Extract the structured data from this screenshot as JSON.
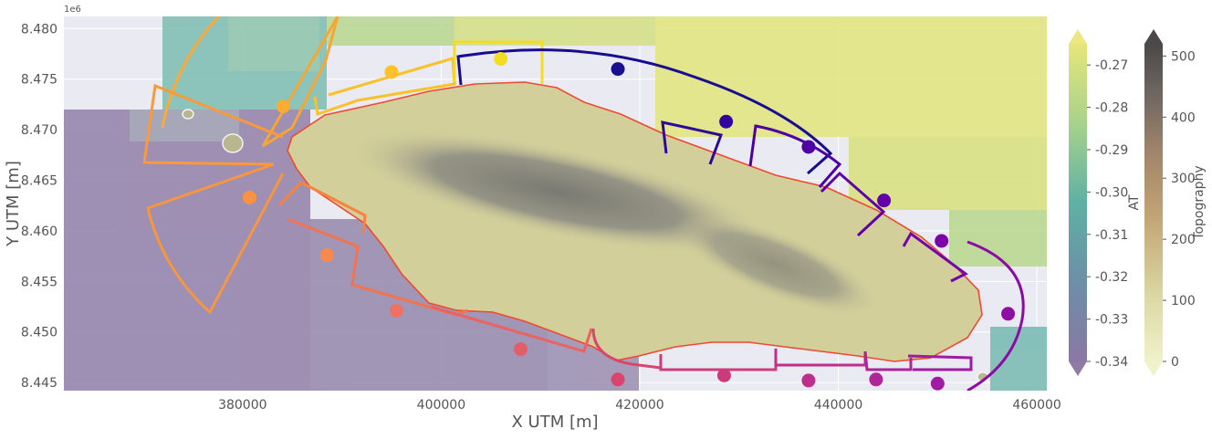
{
  "chart_data": {
    "type": "heatmap",
    "xlabel": "X UTM [m]",
    "ylabel": "Y UTM [m]",
    "y_offset_text": "1e6",
    "xlim": [
      362000,
      461000
    ],
    "ylim": [
      8.4442,
      8.4812
    ],
    "x_ticks": [
      380000,
      400000,
      420000,
      440000,
      460000
    ],
    "x_tick_labels": [
      "380000",
      "400000",
      "420000",
      "440000",
      "460000"
    ],
    "y_ticks": [
      8.445,
      8.45,
      8.455,
      8.46,
      8.465,
      8.47,
      8.475,
      8.48
    ],
    "y_tick_labels": [
      "8.445",
      "8.450",
      "8.455",
      "8.460",
      "8.465",
      "8.470",
      "8.475",
      "8.480"
    ],
    "grid": true,
    "colorbars": [
      {
        "label": "AT",
        "cmap": "viridis",
        "range": [
          -0.34,
          -0.265
        ],
        "ticks": [
          -0.34,
          -0.33,
          -0.32,
          -0.31,
          -0.3,
          -0.29,
          -0.28,
          -0.27
        ],
        "tick_labels": [
          "-0.34",
          "-0.33",
          "-0.32",
          "-0.31",
          "-0.30",
          "-0.29",
          "-0.28",
          "-0.27"
        ],
        "extend": "both"
      },
      {
        "label": "Topography",
        "cmap": "gist_earth_r",
        "range": [
          0,
          520
        ],
        "ticks": [
          0,
          100,
          200,
          300,
          400,
          500
        ],
        "tick_labels": [
          "0",
          "100",
          "200",
          "300",
          "400",
          "500"
        ],
        "extend": "both"
      }
    ],
    "points": [
      {
        "x": 380700,
        "y": 8.4633,
        "color": "#f99242"
      },
      {
        "x": 384100,
        "y": 8.4723,
        "color": "#fbac34"
      },
      {
        "x": 388500,
        "y": 8.4576,
        "color": "#f78a4c"
      },
      {
        "x": 395000,
        "y": 8.4757,
        "color": "#fcc22a"
      },
      {
        "x": 395500,
        "y": 8.4521,
        "color": "#ee7164"
      },
      {
        "x": 406000,
        "y": 8.477,
        "color": "#f3dd23"
      },
      {
        "x": 408000,
        "y": 8.4483,
        "color": "#e35e6a"
      },
      {
        "x": 417800,
        "y": 8.4453,
        "color": "#d8456f"
      },
      {
        "x": 417800,
        "y": 8.476,
        "color": "#1a0f8f"
      },
      {
        "x": 428500,
        "y": 8.4457,
        "color": "#cc3a7c"
      },
      {
        "x": 428700,
        "y": 8.4708,
        "color": "#33069b"
      },
      {
        "x": 437000,
        "y": 8.4452,
        "color": "#bf2d8a"
      },
      {
        "x": 437000,
        "y": 8.4683,
        "color": "#4e02a2"
      },
      {
        "x": 443800,
        "y": 8.4453,
        "color": "#b02597"
      },
      {
        "x": 444600,
        "y": 8.463,
        "color": "#6401a7"
      },
      {
        "x": 450000,
        "y": 8.4449,
        "color": "#a01aa2"
      },
      {
        "x": 450400,
        "y": 8.459,
        "color": "#7a02a8"
      },
      {
        "x": 457100,
        "y": 8.4518,
        "color": "#8f0da4"
      }
    ]
  }
}
